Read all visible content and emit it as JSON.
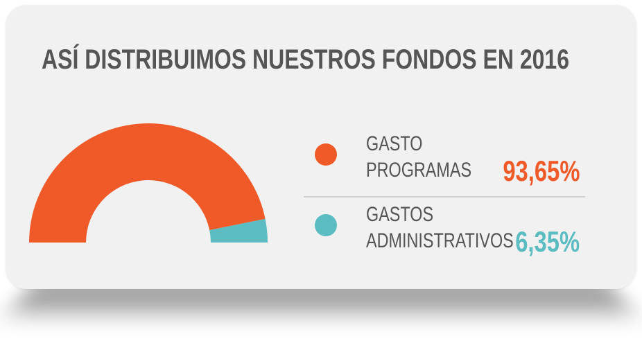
{
  "title": "ASÍ DISTRIBUIMOS NUESTROS FONDOS EN 2016",
  "colors": {
    "programas": "#f05a28",
    "administrativos": "#5bbcc1",
    "text": "#555555",
    "background": "#f1f1f1"
  },
  "legend": [
    {
      "line1": "GASTO",
      "line2": "PROGRAMAS",
      "value_label": "93,65%"
    },
    {
      "line1": "GASTOS",
      "line2": "ADMINISTRATIVOS",
      "value_label": "6,35%"
    }
  ],
  "chart_data": {
    "type": "pie",
    "variant": "semi-donut",
    "title": "ASÍ DISTRIBUIMOS NUESTROS FONDOS EN 2016",
    "slices": [
      {
        "label": "GASTO PROGRAMAS",
        "value": 93.65,
        "color": "#f05a28"
      },
      {
        "label": "GASTOS ADMINISTRATIVOS",
        "value": 6.35,
        "color": "#5bbcc1"
      }
    ],
    "unit": "%",
    "legend_position": "right"
  }
}
